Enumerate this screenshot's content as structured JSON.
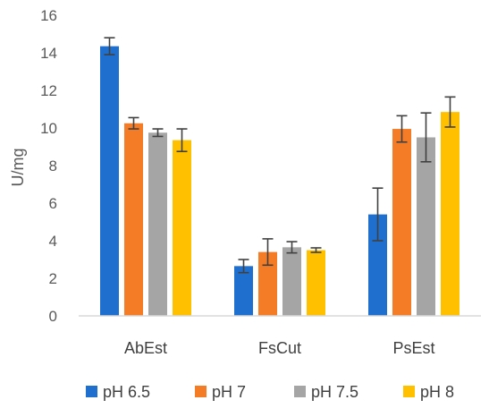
{
  "chart_data": {
    "type": "bar",
    "title": "",
    "xlabel": "",
    "ylabel": "U/mg",
    "ylim": [
      0,
      16
    ],
    "yticks": [
      0,
      2,
      4,
      6,
      8,
      10,
      12,
      14,
      16
    ],
    "grid": false,
    "legend_position": "bottom",
    "categories": [
      "AbEst",
      "FsCut",
      "PsEst"
    ],
    "series": [
      {
        "name": "pH 6.5",
        "color": "#1f6fcf",
        "values": [
          14.35,
          2.65,
          5.4
        ],
        "errors": [
          0.45,
          0.35,
          1.4
        ]
      },
      {
        "name": "pH 7",
        "color": "#f57c26",
        "values": [
          10.25,
          3.4,
          9.95
        ],
        "errors": [
          0.3,
          0.7,
          0.7
        ]
      },
      {
        "name": "pH 7.5",
        "color": "#a5a5a5",
        "values": [
          9.75,
          3.65,
          9.5
        ],
        "errors": [
          0.2,
          0.3,
          1.3
        ]
      },
      {
        "name": "pH 8",
        "color": "#ffc000",
        "values": [
          9.35,
          3.5,
          10.85
        ],
        "errors": [
          0.6,
          0.12,
          0.8
        ]
      }
    ]
  }
}
